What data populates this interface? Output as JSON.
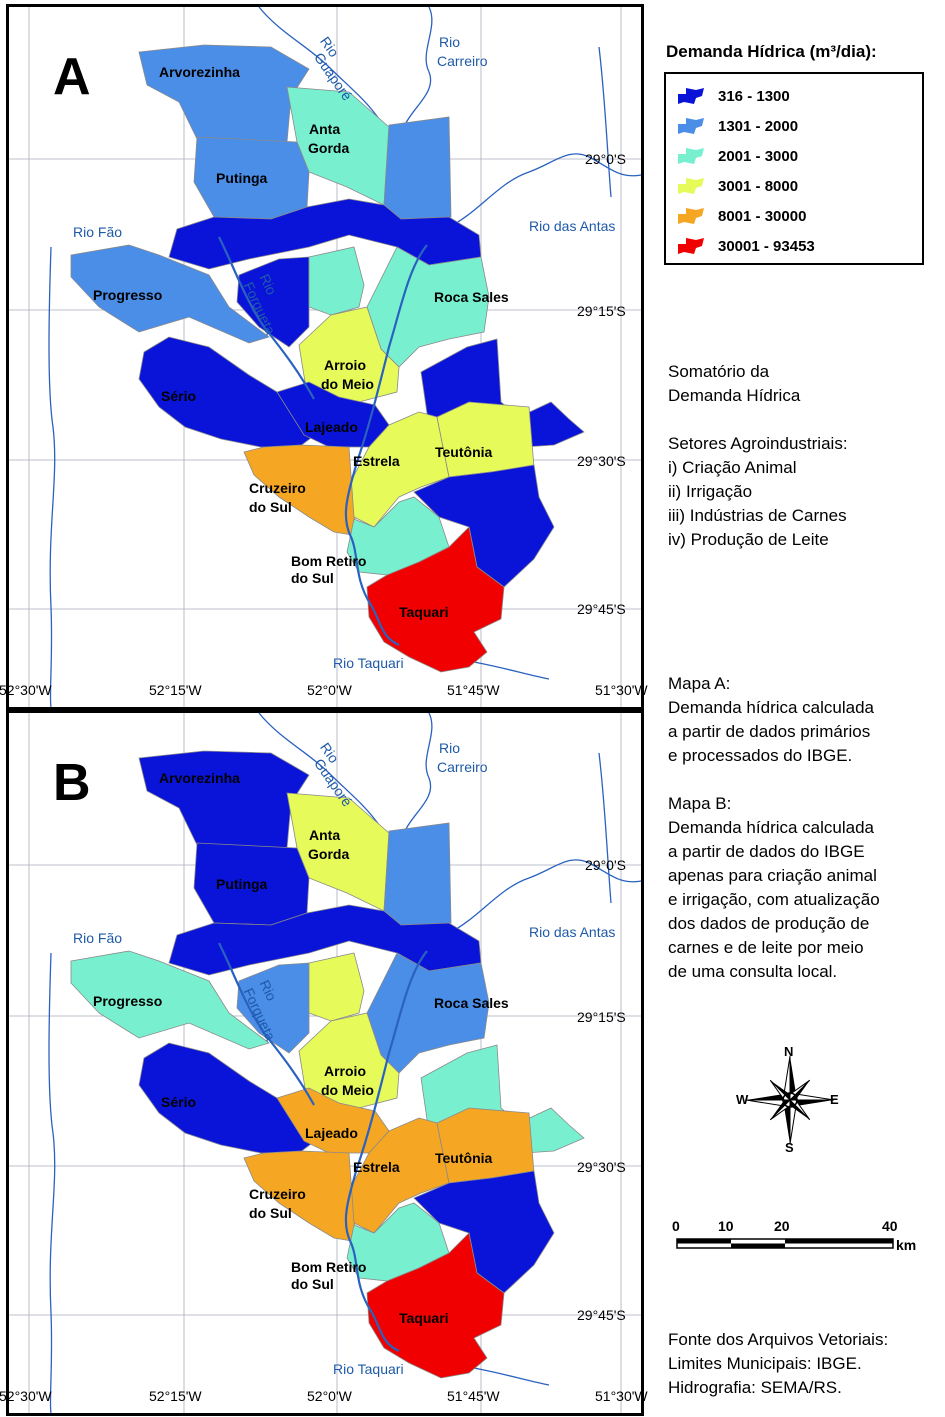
{
  "legend": {
    "title": "Demanda Hídrica (m³/dia):",
    "classes": [
      {
        "label": "316 - 1300",
        "color": "#0a14d8"
      },
      {
        "label": "1301 - 2000",
        "color": "#4a8ee8"
      },
      {
        "label": "2001 - 3000",
        "color": "#78f0d0"
      },
      {
        "label": "3001 - 8000",
        "color": "#e6fa5a"
      },
      {
        "label": "8001 - 30000",
        "color": "#f5a623"
      },
      {
        "label": "30001 - 93453",
        "color": "#f00000"
      }
    ]
  },
  "description": {
    "line1": "Somatório da",
    "line2": "Demanda Hídrica",
    "sectors_title": "Setores Agroindustriais:",
    "sector1": "i) Criação Animal",
    "sector2": "ii) Irrigação",
    "sector3": "iii) Indústrias de Carnes",
    "sector4": "iv) Produção de Leite"
  },
  "notes": {
    "mapA_title": "Mapa A:",
    "mapA_line1": "Demanda hídrica calculada",
    "mapA_line2": "a partir de dados primários",
    "mapA_line3": "e processados do IBGE.",
    "mapB_title": "Mapa B:",
    "mapB_line1": "Demanda hídrica calculada",
    "mapB_line2": "a partir de dados do IBGE",
    "mapB_line3": "apenas para criação animal",
    "mapB_line4": "e irrigação, com atualização",
    "mapB_line5": "dos dados de produção de",
    "mapB_line6": "carnes e de leite por meio",
    "mapB_line7": "de uma consulta local."
  },
  "compass": {
    "n": "N",
    "s": "S",
    "e": "E",
    "w": "W"
  },
  "scale": {
    "ticks": [
      "0",
      "10",
      "20",
      "40"
    ],
    "unit": "km"
  },
  "source": {
    "line1": "Fonte dos Arquivos Vetoriais:",
    "line2": "Limites Municipais: IBGE.",
    "line3": "Hidrografia: SEMA/RS."
  },
  "map_labels": {
    "arvorezinha": "Arvorezinha",
    "anta": "Anta",
    "gorda": "Gorda",
    "putinga": "Putinga",
    "progresso": "Progresso",
    "roca_sales": "Roca Sales",
    "arroio": "Arroio",
    "do_meio": "do Meio",
    "serio": "Sério",
    "lajeado": "Lajeado",
    "estrela": "Estrela",
    "teutonia": "Teutônia",
    "cruzeiro": "Cruzeiro",
    "do_sul": "do Sul",
    "bom_retiro": "Bom Retiro",
    "taquari": "Taquari"
  },
  "rivers": {
    "rio": "Rio",
    "guapore": "Guaporé",
    "carreiro": "Carreiro",
    "rio_fao": "Rio Fão",
    "rio_das_antas": "Rio das Antas",
    "forqueta": "Forqueta",
    "rio_taquari": "Rio Taquari"
  },
  "coords": {
    "lat1": "29°0'S",
    "lat2": "29°15'S",
    "lat3": "29°30'S",
    "lat4": "29°45'S",
    "lon1": "52°30'W",
    "lon2": "52°15'W",
    "lon3": "52°0'W",
    "lon4": "51°45'W",
    "lon5": "51°30'W"
  },
  "maps": {
    "A": {
      "letter": "A",
      "fills": {
        "arvorezinha": "#4a8ee8",
        "putinga": "#4a8ee8",
        "anta_gorda": "#78f0d0",
        "progresso": "#4a8ee8",
        "upper_east": "#4a8ee8",
        "dark_belt": "#0a14d8",
        "forqueta_west": "#0a14d8",
        "forqueta_east": "#78f0d0",
        "roca_sales": "#78f0d0",
        "serio": "#0a14d8",
        "arroio_do_meio": "#e6fa5a",
        "lajeado": "#0a14d8",
        "estrela": "#e6fa5a",
        "teutonia": "#e6fa5a",
        "east_arm": "#0a14d8",
        "cruzeiro_do_sul": "#f5a623",
        "bom_retiro": "#78f0d0",
        "southeast": "#0a14d8",
        "taquari": "#f00000"
      }
    },
    "B": {
      "letter": "B",
      "fills": {
        "arvorezinha": "#0a14d8",
        "putinga": "#0a14d8",
        "anta_gorda": "#e6fa5a",
        "progresso": "#78f0d0",
        "upper_east": "#4a8ee8",
        "dark_belt": "#0a14d8",
        "forqueta_west": "#4a8ee8",
        "forqueta_east": "#e6fa5a",
        "roca_sales": "#4a8ee8",
        "serio": "#0a14d8",
        "arroio_do_meio": "#e6fa5a",
        "lajeado": "#f5a623",
        "estrela": "#f5a623",
        "teutonia": "#f5a623",
        "east_arm": "#78f0d0",
        "cruzeiro_do_sul": "#f5a623",
        "bom_retiro": "#78f0d0",
        "southeast": "#0a14d8",
        "taquari": "#f00000"
      }
    }
  }
}
